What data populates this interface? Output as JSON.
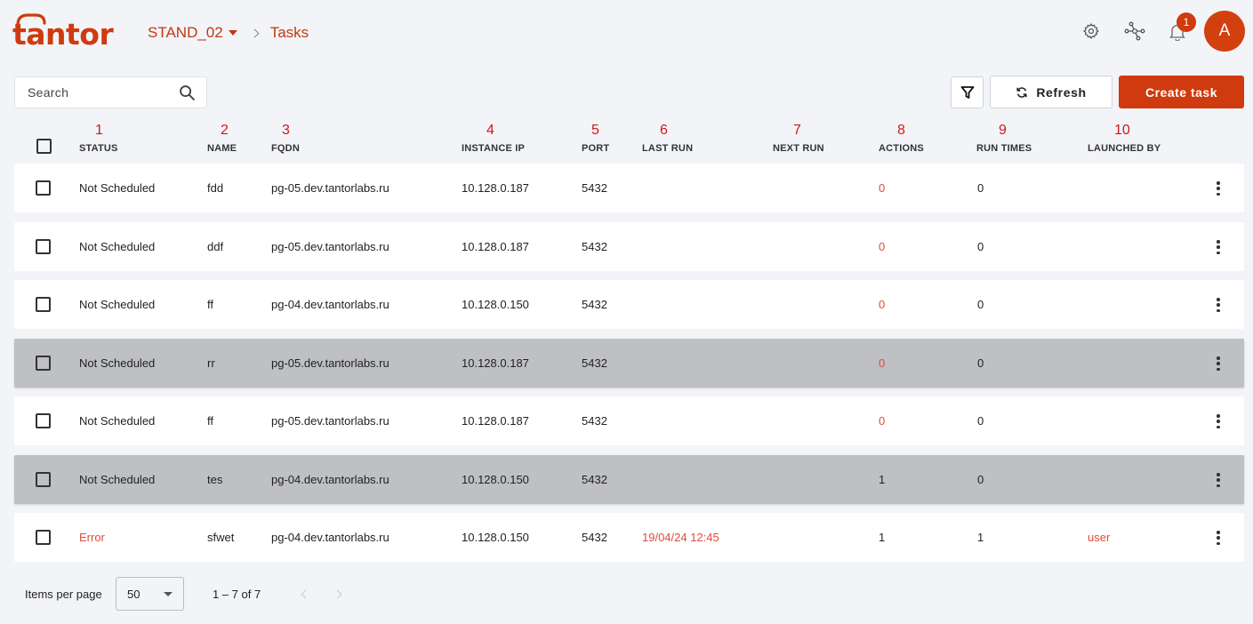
{
  "header": {
    "logo_text": "tantor",
    "breadcrumb": {
      "stand": "STAND_02",
      "page": "Tasks"
    },
    "notifications_count": "1",
    "avatar_initial": "A"
  },
  "toolbar": {
    "search_placeholder": "Search",
    "refresh_label": "Refresh",
    "create_label": "Create task"
  },
  "columns": [
    {
      "num": "1",
      "label": "STATUS"
    },
    {
      "num": "2",
      "label": "NAME"
    },
    {
      "num": "3",
      "label": "FQDN"
    },
    {
      "num": "4",
      "label": "INSTANCE IP"
    },
    {
      "num": "5",
      "label": "PORT"
    },
    {
      "num": "6",
      "label": "LAST RUN"
    },
    {
      "num": "7",
      "label": "NEXT RUN"
    },
    {
      "num": "8",
      "label": "ACTIONS"
    },
    {
      "num": "9",
      "label": "RUN TIMES"
    },
    {
      "num": "10",
      "label": "LAUNCHED BY"
    }
  ],
  "rows": [
    {
      "status": "Not Scheduled",
      "name": "fdd",
      "fqdn": "pg-05.dev.tantorlabs.ru",
      "ip": "10.128.0.187",
      "port": "5432",
      "last_run": "",
      "next_run": "",
      "actions": "0",
      "run_times": "0",
      "launched_by": "",
      "highlighted": false
    },
    {
      "status": "Not Scheduled",
      "name": "ddf",
      "fqdn": "pg-05.dev.tantorlabs.ru",
      "ip": "10.128.0.187",
      "port": "5432",
      "last_run": "",
      "next_run": "",
      "actions": "0",
      "run_times": "0",
      "launched_by": "",
      "highlighted": false
    },
    {
      "status": "Not Scheduled",
      "name": "ff",
      "fqdn": "pg-04.dev.tantorlabs.ru",
      "ip": "10.128.0.150",
      "port": "5432",
      "last_run": "",
      "next_run": "",
      "actions": "0",
      "run_times": "0",
      "launched_by": "",
      "highlighted": false
    },
    {
      "status": "Not Scheduled",
      "name": "rr",
      "fqdn": "pg-05.dev.tantorlabs.ru",
      "ip": "10.128.0.187",
      "port": "5432",
      "last_run": "",
      "next_run": "",
      "actions": "0",
      "run_times": "0",
      "launched_by": "",
      "highlighted": true
    },
    {
      "status": "Not Scheduled",
      "name": "ff",
      "fqdn": "pg-05.dev.tantorlabs.ru",
      "ip": "10.128.0.187",
      "port": "5432",
      "last_run": "",
      "next_run": "",
      "actions": "0",
      "run_times": "0",
      "launched_by": "",
      "highlighted": false
    },
    {
      "status": "Not Scheduled",
      "name": "tes",
      "fqdn": "pg-04.dev.tantorlabs.ru",
      "ip": "10.128.0.150",
      "port": "5432",
      "last_run": "",
      "next_run": "",
      "actions": "1",
      "run_times": "0",
      "launched_by": "",
      "highlighted": true
    },
    {
      "status": "Error",
      "name": "sfwet",
      "fqdn": "pg-04.dev.tantorlabs.ru",
      "ip": "10.128.0.150",
      "port": "5432",
      "last_run": "19/04/24 12:45",
      "next_run": "",
      "actions": "1",
      "run_times": "1",
      "launched_by": "user",
      "highlighted": false
    }
  ],
  "colors": {
    "accent": "#cf3a0e",
    "error": "#e04b3a",
    "annotation": "#d01818"
  },
  "footer": {
    "items_per_page_label": "Items per page",
    "items_per_page_value": "50",
    "range_label": "1 – 7 of 7"
  }
}
